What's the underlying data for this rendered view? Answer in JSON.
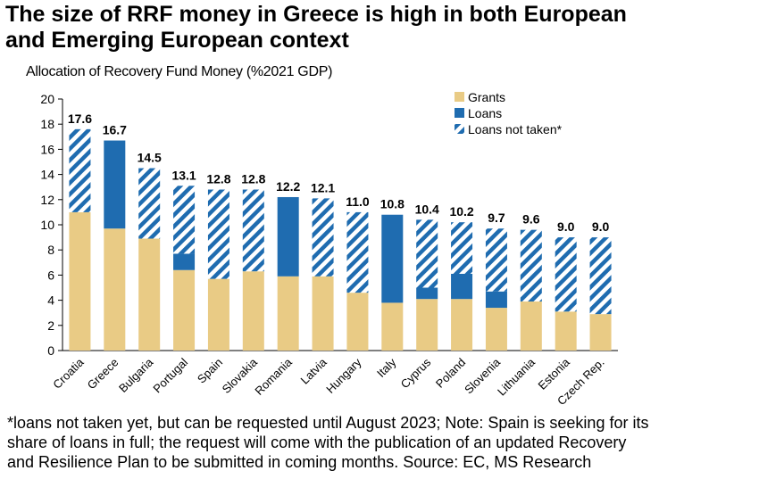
{
  "title_line1": "The size of RRF money in Greece is high in both European",
  "title_line2": "and Emerging European context",
  "footnote_line1": "*loans not taken yet, but can be requested until August 2023; Note: Spain is seeking for its",
  "footnote_line2": "share of loans in full; the request will come with the publication of an updated Recovery",
  "footnote_line3": "and Resilience Plan to be submitted in coming months. Source: EC, MS Research",
  "colors": {
    "grants": "#E9CB85",
    "loans": "#1F6CB0",
    "loans_not_taken": "#1F6CB0"
  },
  "chart_data": {
    "type": "bar",
    "stacked": true,
    "title": "Allocation of Recovery Fund Money (%2021 GDP)",
    "xlabel": "",
    "ylabel": "",
    "ylim": [
      0,
      20
    ],
    "yticks": [
      0,
      2,
      4,
      6,
      8,
      10,
      12,
      14,
      16,
      18,
      20
    ],
    "categories": [
      "Croatia",
      "Greece",
      "Bulgaria",
      "Portugal",
      "Spain",
      "Slovakia",
      "Romania",
      "Latvia",
      "Hungary",
      "Italy",
      "Cyprus",
      "Poland",
      "Slovenia",
      "Lithuania",
      "Estonia",
      "Czech Rep."
    ],
    "series": [
      {
        "name": "Grants",
        "values": [
          11.0,
          9.7,
          8.9,
          6.4,
          5.7,
          6.3,
          5.9,
          5.9,
          4.6,
          3.8,
          4.1,
          4.1,
          3.4,
          3.9,
          3.1,
          2.9
        ]
      },
      {
        "name": "Loans",
        "values": [
          0,
          7.0,
          0,
          1.3,
          0,
          0,
          6.3,
          0,
          0,
          7.0,
          0.9,
          2.0,
          1.3,
          0,
          0,
          0
        ]
      },
      {
        "name": "Loans not taken*",
        "values": [
          6.6,
          0,
          5.6,
          5.4,
          7.1,
          6.5,
          0,
          6.2,
          6.4,
          0,
          5.4,
          4.1,
          5.0,
          5.7,
          5.9,
          6.1
        ]
      }
    ],
    "totals": [
      "17.6",
      "16.7",
      "14.5",
      "13.1",
      "12.8",
      "12.8",
      "12.2",
      "12.1",
      "11.0",
      "10.8",
      "10.4",
      "10.2",
      "9.7",
      "9.6",
      "9.0",
      "9.0"
    ],
    "legend": [
      "Grants",
      "Loans",
      "Loans not taken*"
    ],
    "legend_position": "top-right",
    "grid": false
  }
}
